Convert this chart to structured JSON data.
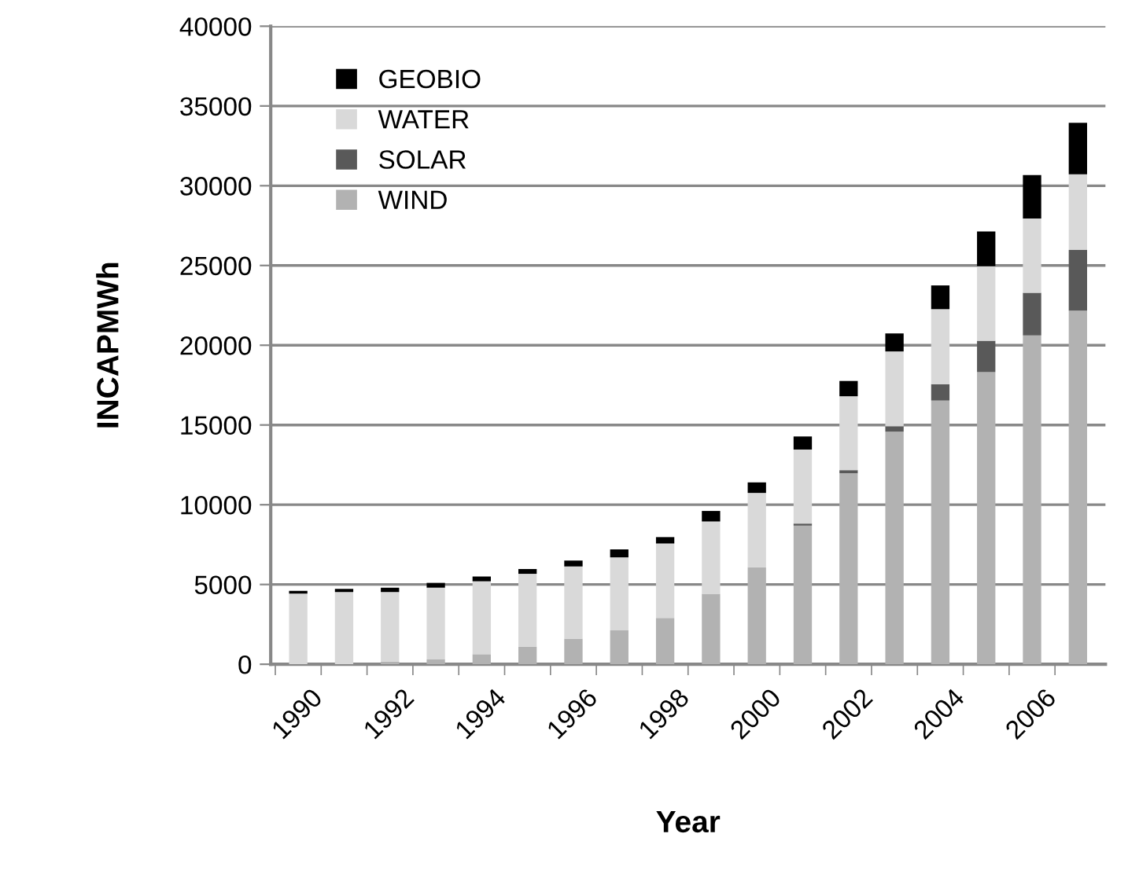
{
  "chart_data": {
    "type": "bar",
    "stacked": true,
    "xlabel": "Year",
    "ylabel": "INCAPMWh",
    "categories": [
      "1990",
      null,
      "1992",
      null,
      "1994",
      null,
      "1996",
      null,
      "1998",
      null,
      "2000",
      null,
      "2002",
      null,
      "2004",
      null,
      "2006",
      null
    ],
    "series": [
      {
        "name": "WIND",
        "color": "#b2b2b2",
        "values": [
          0,
          0,
          170,
          300,
          630,
          1100,
          1600,
          2130,
          2900,
          4420,
          6080,
          8690,
          11970,
          14580,
          16530,
          18320,
          20610,
          22170
        ]
      },
      {
        "name": "SOLAR",
        "color": "#595959",
        "values": [
          0,
          0,
          0,
          0,
          0,
          0,
          0,
          0,
          0,
          0,
          0,
          130,
          200,
          340,
          1030,
          1960,
          2680,
          3800
        ]
      },
      {
        "name": "WATER",
        "color": "#d9d9d9",
        "values": [
          4430,
          4530,
          4360,
          4500,
          4570,
          4570,
          4530,
          4570,
          4670,
          4530,
          4660,
          4640,
          4630,
          4690,
          4700,
          4670,
          4660,
          4750
        ]
      },
      {
        "name": "GEOBIO",
        "color": "#000000",
        "values": [
          170,
          200,
          270,
          300,
          300,
          300,
          370,
          500,
          400,
          660,
          660,
          820,
          960,
          1130,
          1490,
          2180,
          2720,
          3220
        ]
      }
    ],
    "ylim": [
      0,
      40000
    ],
    "yticks": [
      0,
      5000,
      10000,
      15000,
      20000,
      25000,
      30000,
      35000,
      40000
    ],
    "grid": "y",
    "legend": "top left"
  }
}
